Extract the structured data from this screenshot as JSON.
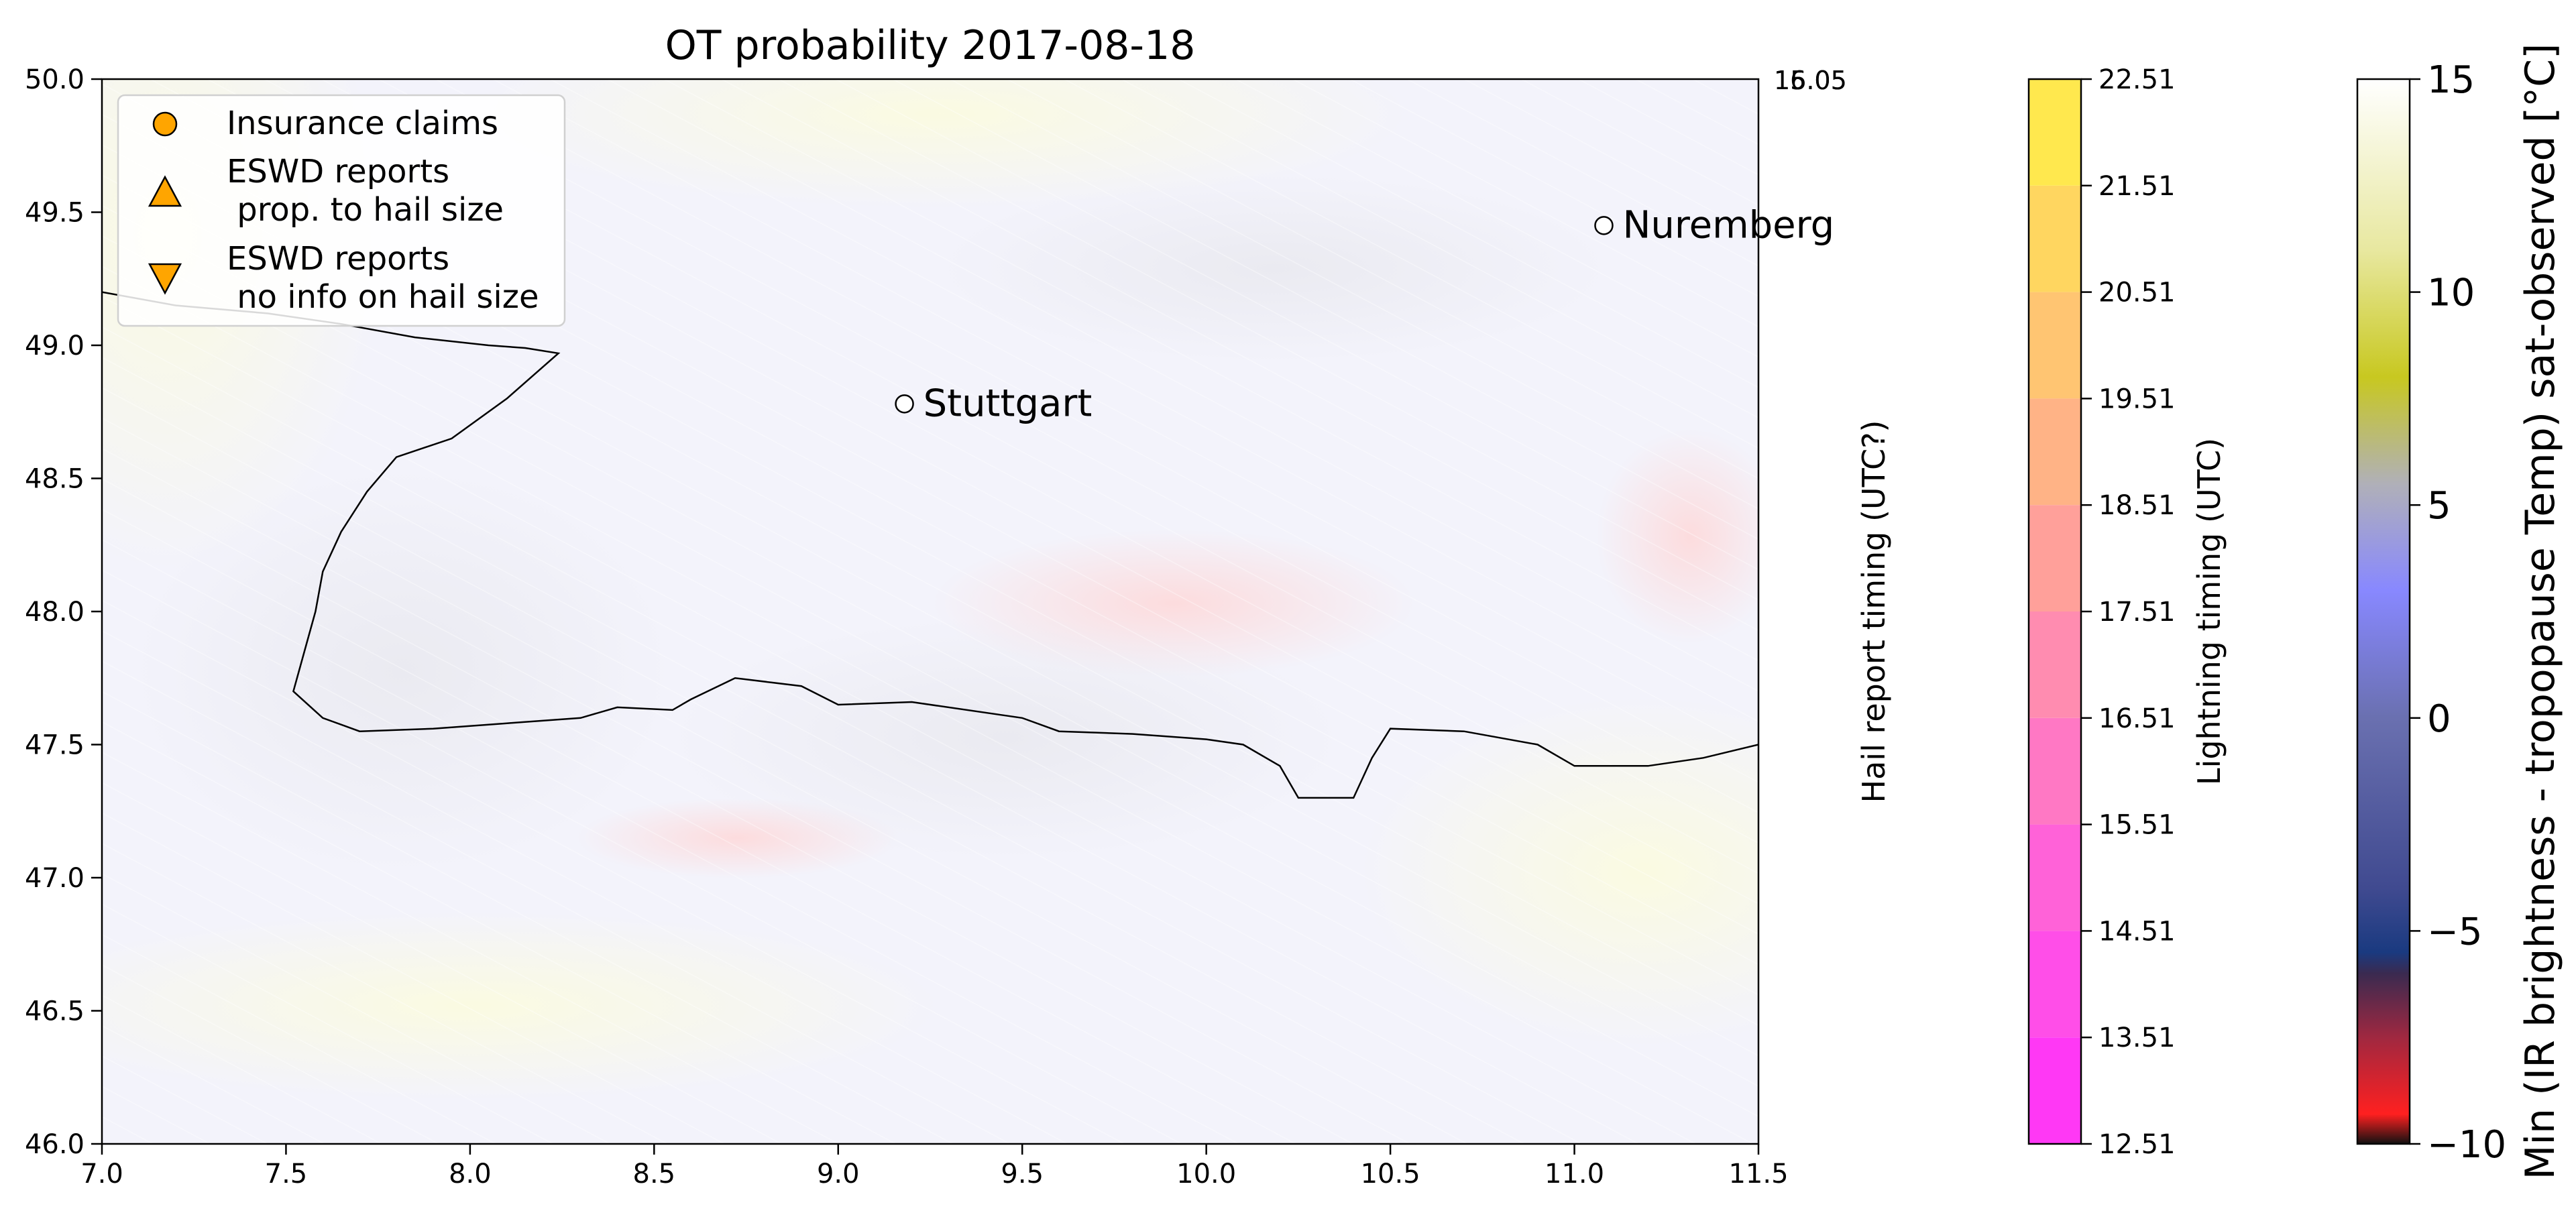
{
  "chart_data": {
    "type": "map",
    "title": "OT probability 2017-08-18",
    "xlim": [
      7.0,
      11.5
    ],
    "ylim": [
      46.0,
      50.0
    ],
    "x_ticks": [
      "7.0",
      "7.5",
      "8.0",
      "8.5",
      "9.0",
      "9.5",
      "10.0",
      "10.5",
      "11.0",
      "11.5"
    ],
    "y_ticks": [
      "46.0",
      "46.5",
      "47.0",
      "47.5",
      "48.0",
      "48.5",
      "49.0",
      "49.5",
      "50.0"
    ],
    "cities": [
      {
        "name": "Stuttgart",
        "lon": 9.18,
        "lat": 48.78
      },
      {
        "name": "Nuremberg",
        "lon": 11.08,
        "lat": 49.45
      }
    ],
    "legend": {
      "placement": "upper-left",
      "items": [
        {
          "marker": "circle",
          "label_lines": [
            "Insurance claims"
          ]
        },
        {
          "marker": "triangle-up",
          "label_lines": [
            "ESWD reports",
            " prop. to hail size"
          ]
        },
        {
          "marker": "triangle-down",
          "label_lines": [
            "ESWD reports",
            " no info on hail size"
          ]
        }
      ]
    },
    "border_line": [
      [
        7.0,
        49.2
      ],
      [
        7.2,
        49.15
      ],
      [
        7.45,
        49.12
      ],
      [
        7.65,
        49.08
      ],
      [
        7.85,
        49.03
      ],
      [
        8.05,
        49.0
      ],
      [
        8.15,
        48.99
      ],
      [
        8.24,
        48.97
      ],
      [
        8.1,
        48.8
      ],
      [
        7.95,
        48.65
      ],
      [
        7.8,
        48.58
      ],
      [
        7.72,
        48.45
      ],
      [
        7.65,
        48.3
      ],
      [
        7.6,
        48.15
      ],
      [
        7.58,
        48.0
      ],
      [
        7.55,
        47.85
      ],
      [
        7.52,
        47.7
      ],
      [
        7.6,
        47.6
      ],
      [
        7.7,
        47.55
      ],
      [
        7.9,
        47.56
      ],
      [
        8.1,
        47.58
      ],
      [
        8.3,
        47.6
      ],
      [
        8.4,
        47.64
      ],
      [
        8.55,
        47.63
      ],
      [
        8.6,
        47.67
      ],
      [
        8.72,
        47.75
      ],
      [
        8.9,
        47.72
      ],
      [
        9.0,
        47.65
      ],
      [
        9.2,
        47.66
      ],
      [
        9.5,
        47.6
      ],
      [
        9.6,
        47.55
      ],
      [
        9.8,
        47.54
      ],
      [
        10.0,
        47.52
      ],
      [
        10.1,
        47.5
      ],
      [
        10.2,
        47.42
      ],
      [
        10.25,
        47.3
      ],
      [
        10.4,
        47.3
      ],
      [
        10.45,
        47.45
      ],
      [
        10.5,
        47.56
      ],
      [
        10.7,
        47.55
      ],
      [
        10.9,
        47.5
      ],
      [
        11.0,
        47.42
      ],
      [
        11.2,
        47.42
      ],
      [
        11.35,
        47.45
      ],
      [
        11.5,
        47.5
      ]
    ],
    "colorbars": [
      {
        "label": "Hail report timing (UTC?)",
        "tick_labels": [
          "16.05",
          "15.05"
        ]
      },
      {
        "label": "Lightning timing (UTC)",
        "range": [
          12.51,
          22.51
        ],
        "tick_labels": [
          "12.51",
          "13.51",
          "14.51",
          "15.51",
          "16.51",
          "17.51",
          "18.51",
          "19.51",
          "20.51",
          "21.51",
          "22.51"
        ],
        "colors": [
          "#ff38f5",
          "#ff4ee8",
          "#ff62d8",
          "#ff78c4",
          "#ff8cb0",
          "#ffa09a",
          "#ffb386",
          "#ffc572",
          "#ffd660",
          "#ffe84e",
          "#ffff3a"
        ]
      },
      {
        "label": "Min (IR brightness - tropopause Temp) sat-observed [°C]",
        "range": [
          -10,
          15
        ],
        "tick_labels": [
          "−10",
          "−5",
          "0",
          "5",
          "10",
          "15"
        ],
        "gradient_stops": [
          {
            "value": -10,
            "color": "#111111"
          },
          {
            "value": -9.3,
            "color": "#ff2020"
          },
          {
            "value": -7.5,
            "color": "#a02840"
          },
          {
            "value": -6.0,
            "color": "#3a2a50"
          },
          {
            "value": -5.5,
            "color": "#1a3a80"
          },
          {
            "value": -4.0,
            "color": "#404a90"
          },
          {
            "value": 0,
            "color": "#6a70b0"
          },
          {
            "value": 3,
            "color": "#8888ff"
          },
          {
            "value": 5.5,
            "color": "#b0b0b8"
          },
          {
            "value": 8,
            "color": "#c8c820"
          },
          {
            "value": 11,
            "color": "#e8e8a0"
          },
          {
            "value": 15,
            "color": "#ffffff"
          }
        ]
      }
    ]
  }
}
